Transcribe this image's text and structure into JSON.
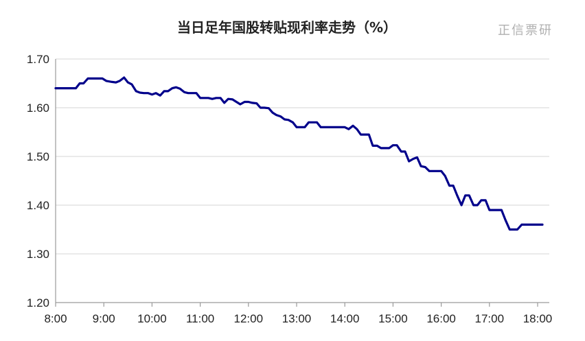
{
  "chart_data": {
    "type": "line",
    "title": "当日足年国股转贴现利率走势（%）",
    "watermark": "正信票研",
    "xlabel": "",
    "ylabel": "",
    "y_ticks": [
      "1.20",
      "1.30",
      "1.40",
      "1.50",
      "1.60",
      "1.70"
    ],
    "x_ticks": [
      "8:00",
      "9:00",
      "10:00",
      "11:00",
      "12:00",
      "13:00",
      "14:00",
      "15:00",
      "16:00",
      "17:00",
      "18:00"
    ],
    "ylim": [
      1.2,
      1.7
    ],
    "xlim": [
      8.0,
      18.0
    ],
    "grid": true,
    "line_color": "#00008B",
    "series": [
      {
        "points": [
          [
            8.0,
            1.64
          ],
          [
            8.25,
            1.64
          ],
          [
            8.42,
            1.64
          ],
          [
            8.5,
            1.65
          ],
          [
            8.58,
            1.65
          ],
          [
            8.67,
            1.66
          ],
          [
            8.83,
            1.66
          ],
          [
            8.97,
            1.66
          ],
          [
            9.05,
            1.655
          ],
          [
            9.17,
            1.653
          ],
          [
            9.25,
            1.652
          ],
          [
            9.33,
            1.655
          ],
          [
            9.42,
            1.662
          ],
          [
            9.5,
            1.652
          ],
          [
            9.58,
            1.648
          ],
          [
            9.67,
            1.634
          ],
          [
            9.75,
            1.631
          ],
          [
            9.83,
            1.63
          ],
          [
            9.92,
            1.63
          ],
          [
            10.0,
            1.627
          ],
          [
            10.08,
            1.63
          ],
          [
            10.17,
            1.625
          ],
          [
            10.25,
            1.634
          ],
          [
            10.33,
            1.634
          ],
          [
            10.42,
            1.64
          ],
          [
            10.5,
            1.642
          ],
          [
            10.58,
            1.639
          ],
          [
            10.67,
            1.632
          ],
          [
            10.75,
            1.63
          ],
          [
            10.83,
            1.63
          ],
          [
            10.92,
            1.63
          ],
          [
            11.0,
            1.62
          ],
          [
            11.08,
            1.62
          ],
          [
            11.17,
            1.62
          ],
          [
            11.25,
            1.618
          ],
          [
            11.33,
            1.62
          ],
          [
            11.42,
            1.62
          ],
          [
            11.5,
            1.61
          ],
          [
            11.58,
            1.618
          ],
          [
            11.67,
            1.617
          ],
          [
            11.75,
            1.612
          ],
          [
            11.83,
            1.607
          ],
          [
            11.92,
            1.612
          ],
          [
            12.0,
            1.612
          ],
          [
            12.08,
            1.61
          ],
          [
            12.17,
            1.609
          ],
          [
            12.25,
            1.6
          ],
          [
            12.33,
            1.6
          ],
          [
            12.42,
            1.599
          ],
          [
            12.5,
            1.59
          ],
          [
            12.58,
            1.585
          ],
          [
            12.67,
            1.582
          ],
          [
            12.75,
            1.576
          ],
          [
            12.83,
            1.575
          ],
          [
            12.92,
            1.57
          ],
          [
            13.0,
            1.56
          ],
          [
            13.17,
            1.56
          ],
          [
            13.25,
            1.57
          ],
          [
            13.42,
            1.57
          ],
          [
            13.5,
            1.56
          ],
          [
            13.75,
            1.56
          ],
          [
            14.0,
            1.56
          ],
          [
            14.08,
            1.556
          ],
          [
            14.17,
            1.563
          ],
          [
            14.25,
            1.556
          ],
          [
            14.33,
            1.545
          ],
          [
            14.42,
            1.545
          ],
          [
            14.5,
            1.545
          ],
          [
            14.58,
            1.522
          ],
          [
            14.67,
            1.522
          ],
          [
            14.75,
            1.517
          ],
          [
            14.92,
            1.517
          ],
          [
            15.0,
            1.523
          ],
          [
            15.08,
            1.523
          ],
          [
            15.17,
            1.51
          ],
          [
            15.25,
            1.51
          ],
          [
            15.33,
            1.49
          ],
          [
            15.42,
            1.495
          ],
          [
            15.5,
            1.498
          ],
          [
            15.58,
            1.48
          ],
          [
            15.67,
            1.478
          ],
          [
            15.75,
            1.47
          ],
          [
            15.83,
            1.47
          ],
          [
            15.92,
            1.47
          ],
          [
            16.0,
            1.47
          ],
          [
            16.08,
            1.46
          ],
          [
            16.17,
            1.44
          ],
          [
            16.25,
            1.44
          ],
          [
            16.33,
            1.42
          ],
          [
            16.42,
            1.4
          ],
          [
            16.5,
            1.42
          ],
          [
            16.58,
            1.42
          ],
          [
            16.67,
            1.4
          ],
          [
            16.75,
            1.4
          ],
          [
            16.83,
            1.41
          ],
          [
            16.92,
            1.41
          ],
          [
            17.0,
            1.39
          ],
          [
            17.08,
            1.39
          ],
          [
            17.17,
            1.39
          ],
          [
            17.25,
            1.39
          ],
          [
            17.33,
            1.37
          ],
          [
            17.42,
            1.35
          ],
          [
            17.5,
            1.35
          ],
          [
            17.58,
            1.35
          ],
          [
            17.67,
            1.36
          ],
          [
            17.75,
            1.36
          ],
          [
            18.0,
            1.36
          ],
          [
            18.1,
            1.36
          ]
        ]
      }
    ]
  }
}
